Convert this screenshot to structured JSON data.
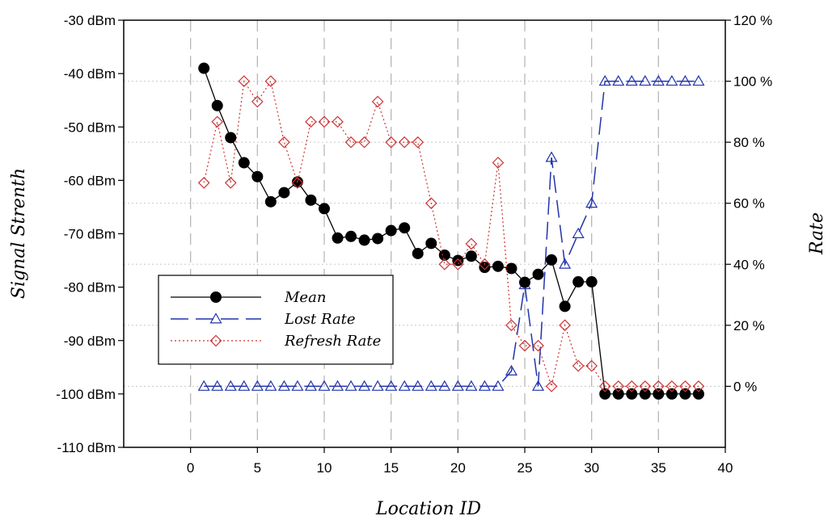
{
  "chart_data": {
    "type": "line",
    "title": "",
    "xlabel": "Location ID",
    "ylabel": "Signal Strenth",
    "y2label": "Rate",
    "xlim": [
      -5,
      40
    ],
    "ylim": [
      -110,
      -30
    ],
    "y2lim": [
      -20,
      120
    ],
    "xticks": [
      "0",
      "5",
      "10",
      "15",
      "20",
      "25",
      "30",
      "35",
      "40"
    ],
    "yticks": [
      "-30 dBm",
      "-40 dBm",
      "-50 dBm",
      "-60 dBm",
      "-70 dBm",
      "-80 dBm",
      "-90 dBm",
      "-100 dBm",
      "-110 dBm"
    ],
    "y2ticks": [
      "120 %",
      "100 %",
      "80 %",
      "60 %",
      "40 %",
      "20 %",
      "0 %"
    ],
    "x": [
      1,
      2,
      3,
      4,
      5,
      6,
      7,
      8,
      9,
      10,
      11,
      12,
      13,
      14,
      15,
      16,
      17,
      18,
      19,
      20,
      21,
      22,
      23,
      24,
      25,
      26,
      27,
      28,
      29,
      30,
      31,
      32,
      33,
      34,
      35,
      36,
      37,
      38
    ],
    "series": [
      {
        "name": "Mean",
        "axis": "left",
        "color": "#000000",
        "marker": "circle",
        "values": [
          -39,
          -46,
          -52,
          -56.7,
          -59.3,
          -64,
          -62.3,
          -60.3,
          -63.7,
          -65.3,
          -70.8,
          -70.5,
          -71.2,
          -70.9,
          -69.4,
          -68.9,
          -73.7,
          -71.8,
          -74,
          -75,
          -74.2,
          -76.3,
          -76.1,
          -76.5,
          -79.1,
          -77.6,
          -74.9,
          -83.6,
          -79,
          -79,
          -100,
          -100,
          -100,
          -100,
          -100,
          -100,
          -100,
          -100
        ]
      },
      {
        "name": "Lost Rate",
        "axis": "right",
        "color": "#2233aa",
        "marker": "triangle",
        "values": [
          0,
          0,
          0,
          0,
          0,
          0,
          0,
          0,
          0,
          0,
          0,
          0,
          0,
          0,
          0,
          0,
          0,
          0,
          0,
          0,
          0,
          0,
          0,
          5,
          33.3,
          0,
          75,
          40,
          50,
          60,
          100,
          100,
          100,
          100,
          100,
          100,
          100,
          100
        ]
      },
      {
        "name": "Refresh Rate",
        "axis": "right",
        "color": "#cc3333",
        "marker": "diamond",
        "values": [
          66.7,
          86.7,
          66.7,
          100,
          93.3,
          100,
          80,
          66.7,
          86.7,
          86.7,
          86.7,
          80,
          80,
          93.3,
          80,
          80,
          80,
          60,
          40,
          40,
          46.7,
          40,
          73.3,
          20,
          13.3,
          13.3,
          0,
          20,
          6.7,
          6.7,
          0,
          0,
          0,
          0,
          0,
          0,
          0,
          0
        ]
      }
    ],
    "legend": {
      "position": "lower-left",
      "entries": [
        "Mean",
        "Lost Rate",
        "Refresh Rate"
      ]
    },
    "grid": {
      "vertical": true,
      "horizontal": true
    }
  }
}
